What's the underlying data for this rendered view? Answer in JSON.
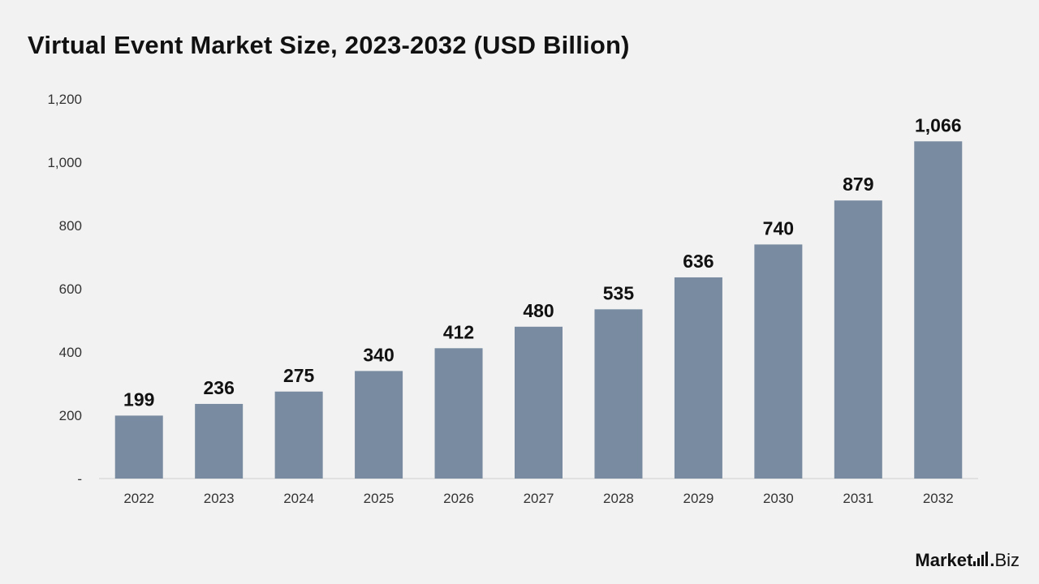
{
  "header": {
    "title": "Virtual Event Market Size, 2023-2032 (USD Billion)"
  },
  "brand": {
    "part1": "Market",
    "part2": "Biz",
    "dot": "."
  },
  "colors": {
    "bar": "#788ba0",
    "axis": "#d0d0d0",
    "background": "#f2f2f2"
  },
  "chart_data": {
    "type": "bar",
    "title": "Virtual Event Market Size, 2023-2032 (USD Billion)",
    "categories": [
      "2022",
      "2023",
      "2024",
      "2025",
      "2026",
      "2027",
      "2028",
      "2029",
      "2030",
      "2031",
      "2032"
    ],
    "values": [
      199,
      236,
      275,
      340,
      412,
      480,
      535,
      636,
      740,
      879,
      1066
    ],
    "data_labels": [
      "199",
      "236",
      "275",
      "340",
      "412",
      "480",
      "535",
      "636",
      "740",
      "879",
      "1,066"
    ],
    "yticks": [
      0,
      200,
      400,
      600,
      800,
      1000,
      1200
    ],
    "ytick_labels": [
      "-",
      "200",
      "400",
      "600",
      "800",
      "1,000",
      "1,200"
    ],
    "ylim": [
      0,
      1200
    ],
    "xlabel": "",
    "ylabel": "",
    "grid": false,
    "legend": "none"
  }
}
